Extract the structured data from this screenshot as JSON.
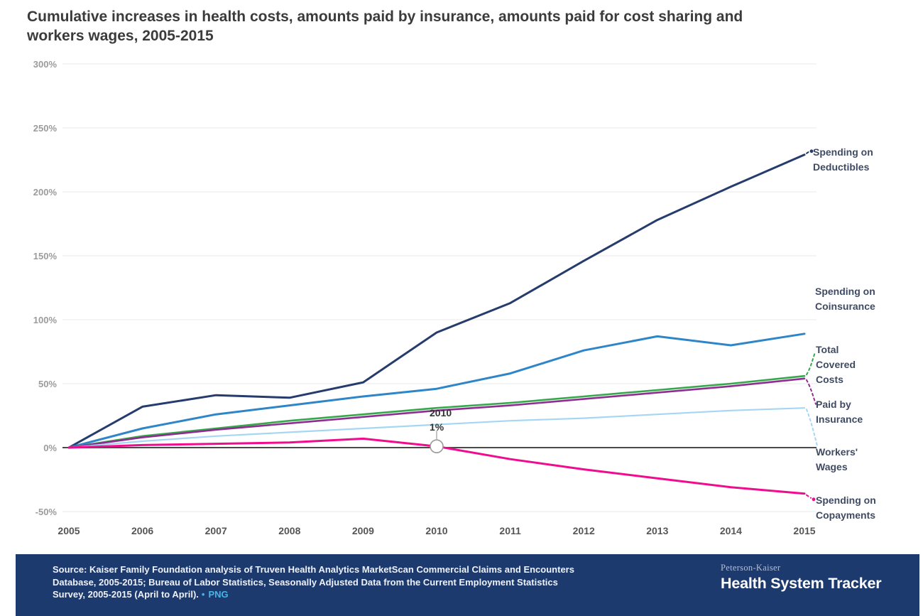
{
  "title": "Cumulative increases in health costs, amounts paid by insurance, amounts paid for cost sharing and workers wages, 2005-2015",
  "chart_data": {
    "type": "line",
    "x": [
      2005,
      2006,
      2007,
      2008,
      2009,
      2010,
      2011,
      2012,
      2013,
      2014,
      2015
    ],
    "ylim": [
      -50,
      300
    ],
    "grid": true,
    "legend_position": "right-edge-labels",
    "y_ticks": [
      {
        "label": "300%",
        "value": 300
      },
      {
        "label": "250%",
        "value": 250
      },
      {
        "label": "200%",
        "value": 200
      },
      {
        "label": "150%",
        "value": 150
      },
      {
        "label": "100%",
        "value": 100
      },
      {
        "label": "50%",
        "value": 50
      },
      {
        "label": "0%",
        "value": 0
      },
      {
        "label": "-50%",
        "value": -50
      }
    ],
    "series": [
      {
        "name": "spending-on-deductibles",
        "label": "Spending on Deductibles",
        "color": "#253c6d",
        "values": [
          0,
          32,
          41,
          39,
          51,
          90,
          113,
          146,
          178,
          204,
          229
        ]
      },
      {
        "name": "spending-on-coinsurance",
        "label": "Spending on Coinsurance",
        "color": "#2e86c8",
        "values": [
          0,
          15,
          26,
          33,
          40,
          46,
          58,
          76,
          87,
          80,
          89
        ]
      },
      {
        "name": "total-covered-costs",
        "label": "Total Covered Costs",
        "color": "#35a84c",
        "values": [
          0,
          9,
          15,
          21,
          26,
          31,
          35,
          40,
          45,
          50,
          56
        ]
      },
      {
        "name": "paid-by-insurance",
        "label": "Paid by Insurance",
        "color": "#8f2e91",
        "values": [
          0,
          8,
          14,
          19,
          24,
          29,
          33,
          38,
          43,
          48,
          54
        ]
      },
      {
        "name": "workers-wages",
        "label": "Workers' Wages",
        "color": "#a5d7f5",
        "values": [
          0,
          5,
          9,
          12,
          15,
          18,
          21,
          23,
          26,
          29,
          31
        ]
      },
      {
        "name": "spending-on-copayments",
        "label": "Spending on Copayments",
        "color": "#f00c8c",
        "values": [
          0,
          2,
          3,
          4,
          7,
          1,
          -9,
          -17,
          -24,
          -31,
          -36
        ]
      }
    ],
    "annotation": {
      "year": 2010,
      "value": 1,
      "series": "spending-on-copayments",
      "label_line1": "2010",
      "label_line2": "1%"
    },
    "grid_color": "#ededed",
    "axis_color": "#4a4a4a"
  },
  "footer": {
    "source_line1": "Source: Kaiser Family Foundation analysis of Truven Health Analytics MarketScan Commercial Claims and Encounters",
    "source_line2": "Database, 2005-2015; Bureau of Labor Statistics, Seasonally Adjusted Data from the Current Employment Statistics",
    "source_line3": "Survey, 2005-2015 (April to April).",
    "separator": "•",
    "png_link": "PNG",
    "brand_top": "Peterson-Kaiser",
    "brand_bottom": "Health System Tracker"
  }
}
